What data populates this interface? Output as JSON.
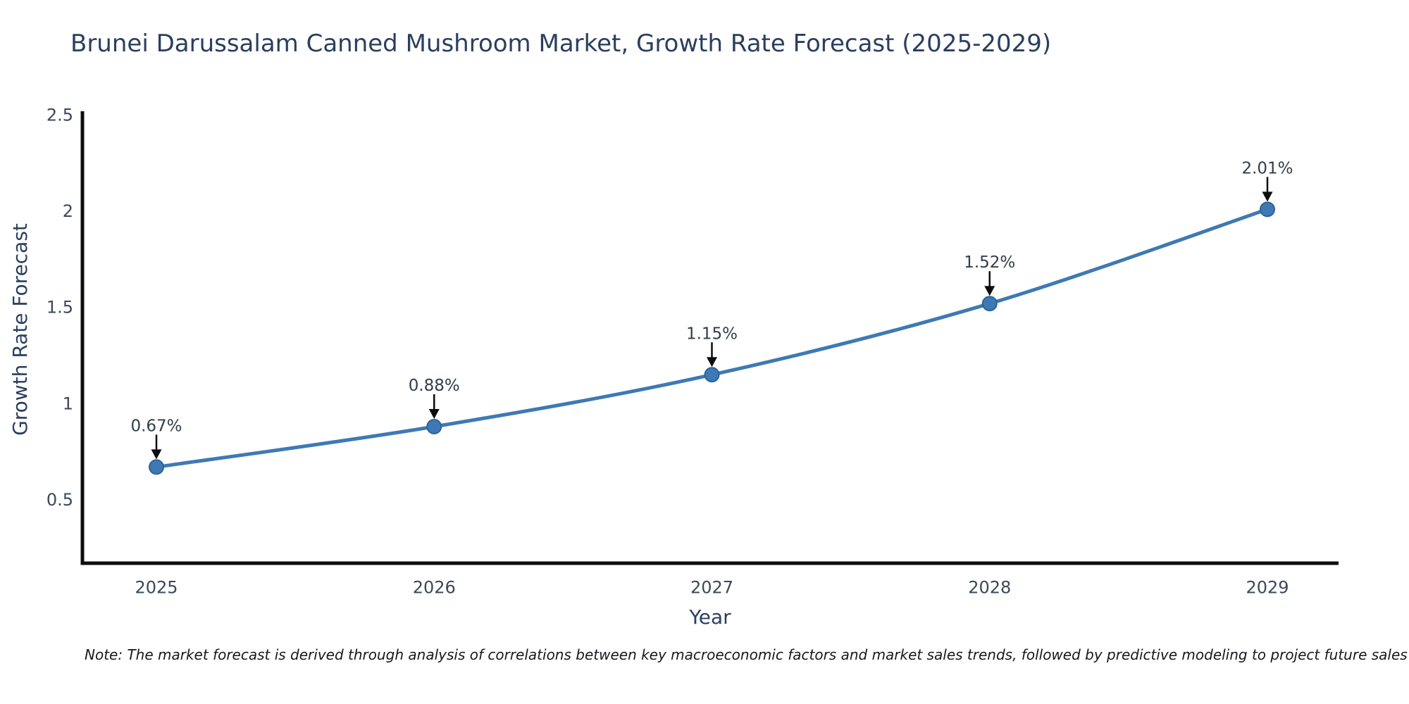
{
  "chart_data": {
    "type": "line",
    "title": "Brunei Darussalam Canned Mushroom Market, Growth Rate Forecast (2025-2029)",
    "xlabel": "Year",
    "ylabel": "Growth Rate Forecast",
    "categories": [
      "2025",
      "2026",
      "2027",
      "2028",
      "2029"
    ],
    "series": [
      {
        "name": "Growth Rate Forecast",
        "values": [
          0.67,
          0.88,
          1.15,
          1.52,
          2.01
        ],
        "point_labels": [
          "0.67%",
          "0.88%",
          "1.15%",
          "1.52%",
          "2.01%"
        ]
      }
    ],
    "yticks": [
      "2.5",
      "2",
      "1.5",
      "1",
      "0.5"
    ],
    "ytick_values": [
      2.5,
      2,
      1.5,
      1,
      0.5
    ],
    "ylim": [
      0.17,
      2.52
    ],
    "grid": false,
    "legend_position": "none",
    "line_shape": "spline",
    "annotations": "value labels with down arrows above each point",
    "colors": {
      "line": "#3e79b4",
      "marker_fill": "#3e79b4",
      "marker_edge": "#2b6399",
      "axis": "#0d0d0d",
      "arrow": "#0d0d0d",
      "title": "#2a3f5f",
      "tick_label": "#3c4857",
      "annotation_text": "#333d4a"
    }
  },
  "note": {
    "text": "Note: The market forecast is derived through analysis of correlations between key macroeconomic factors and market sales trends, followed by predictive modeling to project future sales"
  }
}
